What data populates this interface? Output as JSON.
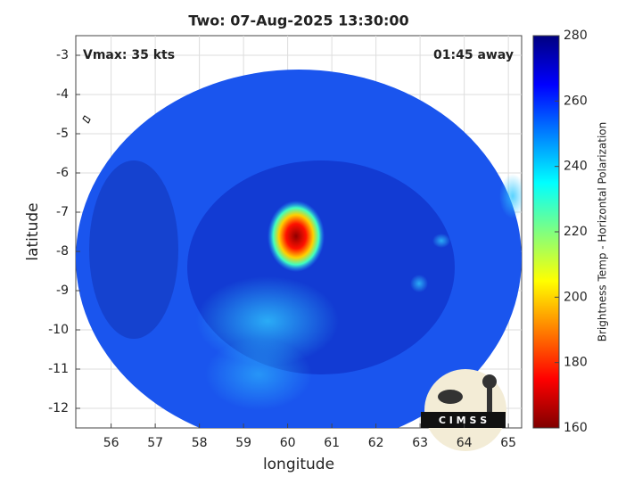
{
  "chart_data": {
    "type": "map",
    "title": "Two: 07-Aug-2025 13:30:00",
    "annotations": [
      "Vmax: 35 kts",
      "01:45 away"
    ],
    "x_label": "longitude",
    "y_label": "latitude",
    "xlim": [
      55.2,
      65.3
    ],
    "xticks": [
      56,
      57,
      58,
      59,
      60,
      61,
      62,
      63,
      64,
      65
    ],
    "ylim": [
      -12.5,
      -2.5
    ],
    "yticks": [
      -12,
      -11,
      -10,
      -9,
      -8,
      -7,
      -6,
      -5,
      -4,
      -3
    ],
    "grid": true,
    "colorbar": {
      "label": "Brightness Temp - Horizontal Polarization",
      "lim": [
        160,
        280
      ],
      "ticks": [
        160,
        180,
        200,
        220,
        240,
        260,
        280
      ],
      "colors": [
        "#800000",
        "#ff0000",
        "#ff8000",
        "#ffff00",
        "#80ff80",
        "#00ffff",
        "#0080ff",
        "#0000ff",
        "#000080"
      ]
    },
    "logo": "C I M S S"
  }
}
